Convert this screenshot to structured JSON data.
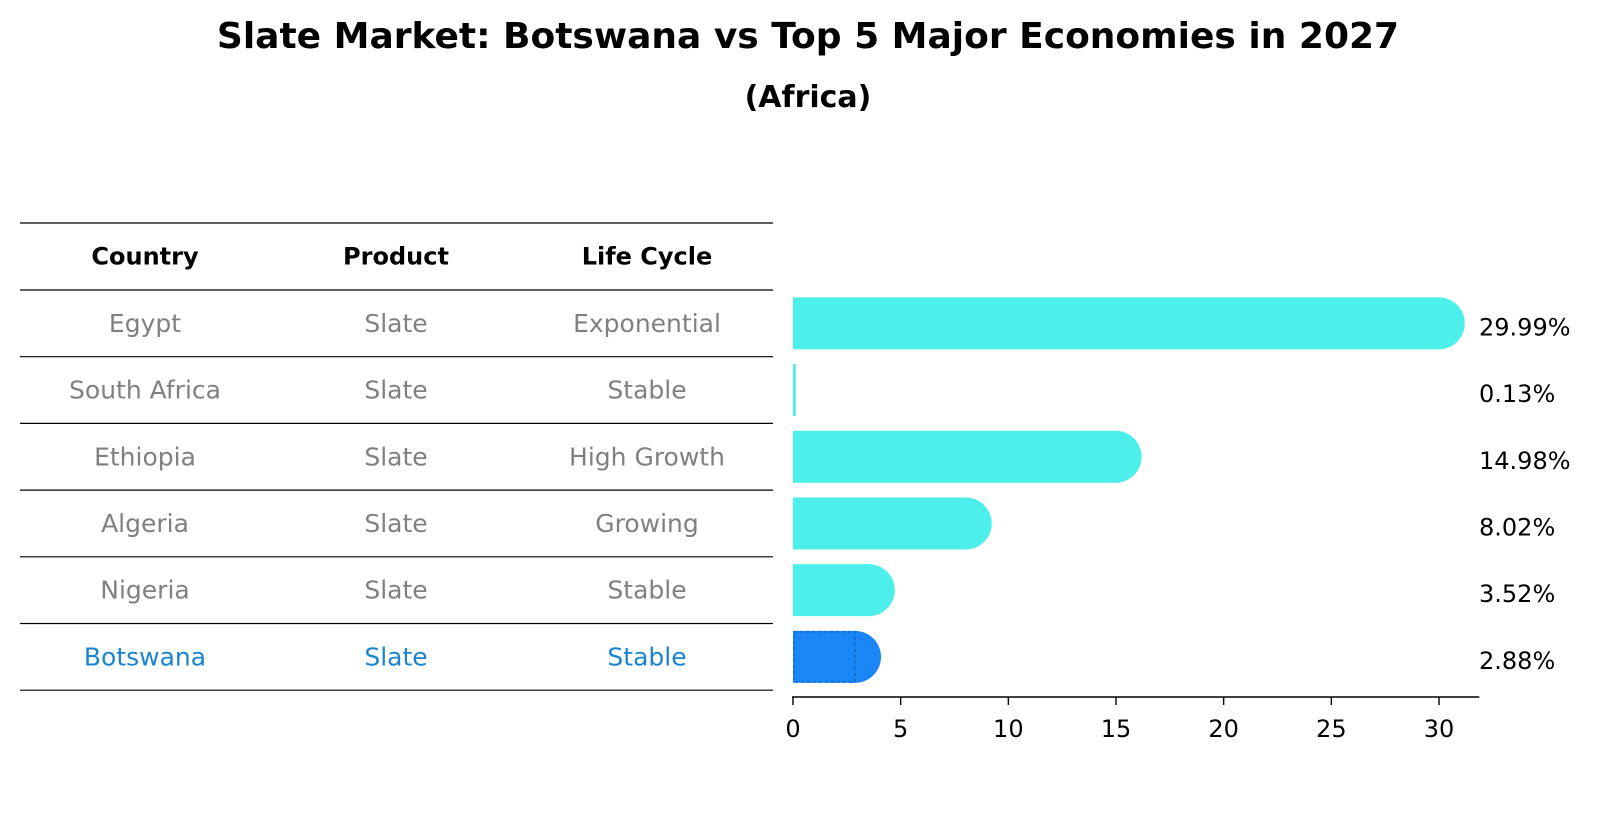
{
  "chart_data": {
    "type": "bar",
    "orientation": "horizontal",
    "title": "Slate Market: Botswana vs Top 5 Major Economies in 2027",
    "subtitle": "(Africa)",
    "table": {
      "headers": [
        "Country",
        "Product",
        "Life Cycle"
      ],
      "rows": [
        [
          "Egypt",
          "Slate",
          "Exponential"
        ],
        [
          "South Africa",
          "Slate",
          "Stable"
        ],
        [
          "Ethiopia",
          "Slate",
          "High Growth"
        ],
        [
          "Algeria",
          "Slate",
          "Growing"
        ],
        [
          "Nigeria",
          "Slate",
          "Stable"
        ],
        [
          "Botswana",
          "Slate",
          "Stable"
        ]
      ],
      "highlight_row": 5
    },
    "categories": [
      "Egypt",
      "South Africa",
      "Ethiopia",
      "Algeria",
      "Nigeria",
      "Botswana"
    ],
    "values": [
      29.99,
      0.13,
      14.98,
      8.02,
      3.52,
      2.88
    ],
    "value_labels": [
      "29.99%",
      "0.13%",
      "14.98%",
      "8.02%",
      "3.52%",
      "2.88%"
    ],
    "xlim": [
      0,
      31.5
    ],
    "xticks": [
      0,
      5,
      10,
      15,
      20,
      25,
      30
    ],
    "colors": {
      "bar": "#4CEFEA",
      "highlight_bar": "#1A86F5",
      "text_muted": "#808080",
      "text_highlight": "#1B84D0",
      "line": "#000000"
    }
  }
}
